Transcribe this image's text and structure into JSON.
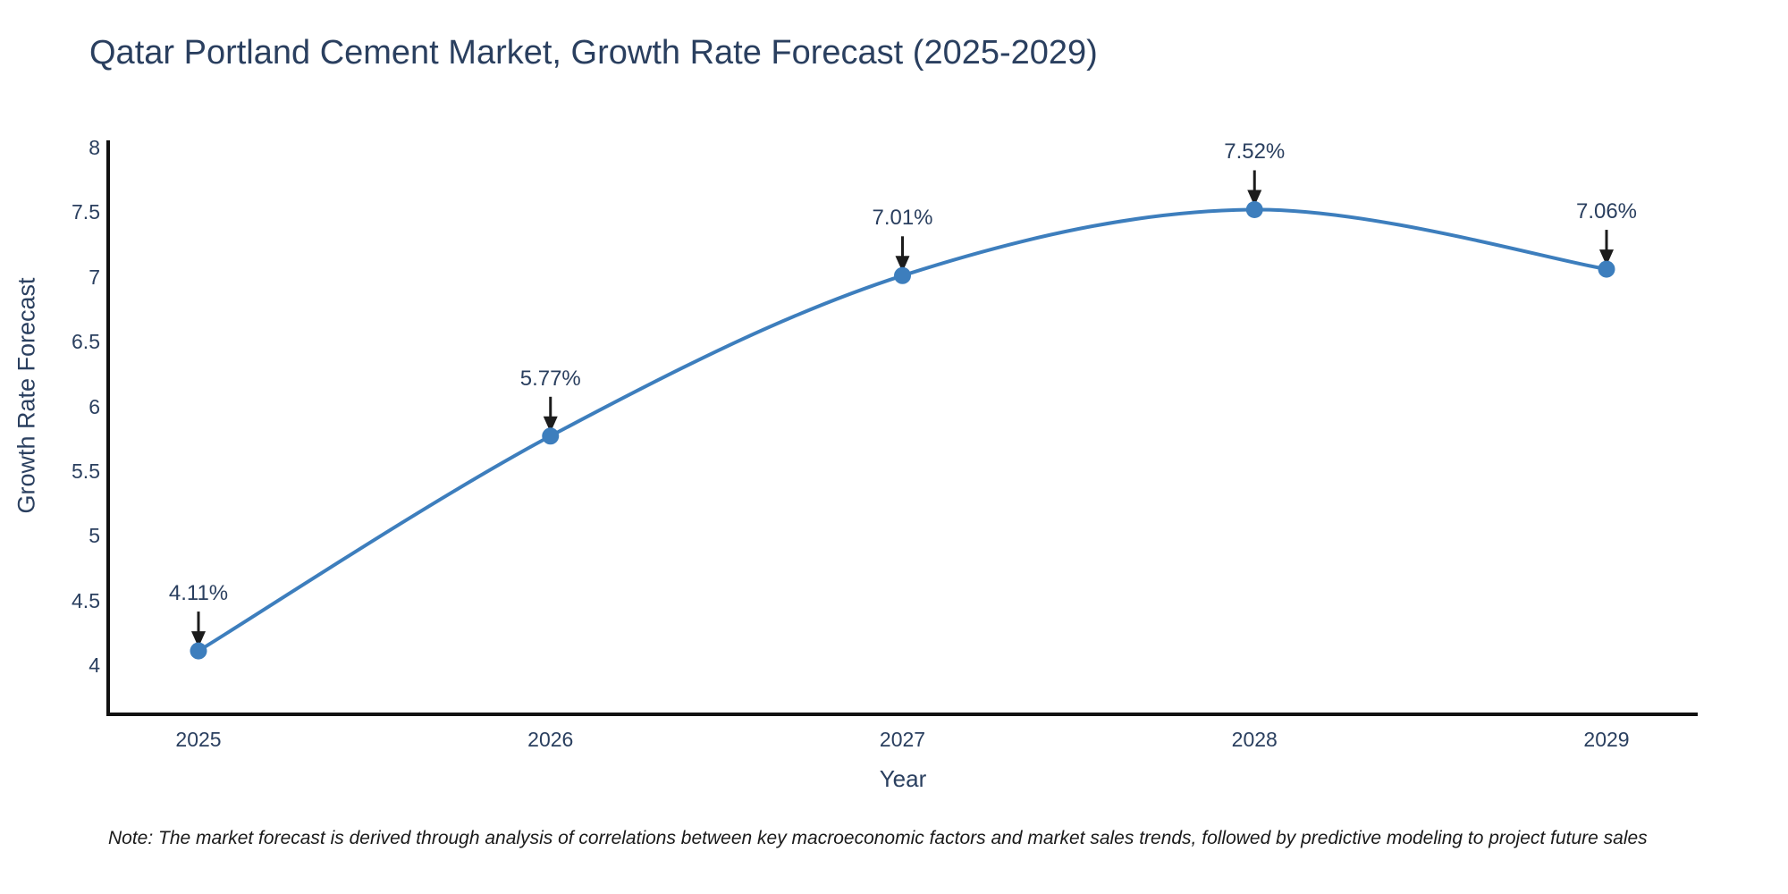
{
  "title": "Qatar Portland Cement Market, Growth Rate Forecast (2025-2029)",
  "x_axis": {
    "title": "Year",
    "ticks": [
      "2025",
      "2026",
      "2027",
      "2028",
      "2029"
    ]
  },
  "y_axis": {
    "title": "Growth Rate Forecast",
    "ticks": [
      "8",
      "7.5",
      "7",
      "6.5",
      "6",
      "5.5",
      "5",
      "4.5",
      "4"
    ]
  },
  "note": "Note: The market forecast is derived through analysis of correlations between key macroeconomic factors and market sales trends, followed by predictive modeling to project future sales",
  "colors": {
    "line": "#3d7ebd",
    "marker": "#3d7ebd",
    "axis": "#111111",
    "text": "#2a3f5f",
    "annotation_arrow": "#1c1c1c",
    "background": "#ffffff"
  },
  "chart_data": {
    "type": "line",
    "x": [
      2025,
      2026,
      2027,
      2028,
      2029
    ],
    "values": [
      4.11,
      5.77,
      7.01,
      7.52,
      7.06
    ],
    "point_labels": [
      "4.11%",
      "5.77%",
      "7.01%",
      "7.52%",
      "7.06%"
    ],
    "series_name": "Growth Rate Forecast",
    "title": "Qatar Portland Cement Market, Growth Rate Forecast (2025-2029)",
    "xlabel": "Year",
    "ylabel": "Growth Rate Forecast",
    "ylim": [
      3.62,
      8.06
    ],
    "ytick_step": 0.5,
    "grid": false,
    "legend": "none",
    "line_shape": "spline",
    "markers": true,
    "annotations": "value labels with down arrows above each point"
  }
}
